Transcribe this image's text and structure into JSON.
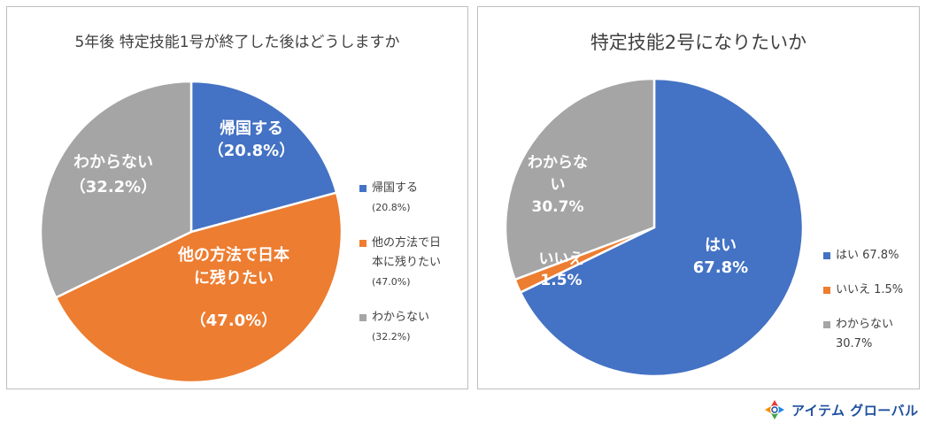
{
  "charts": [
    {
      "title": "5年後 特定技能1号が終了した後はどうしますか",
      "legend": [
        {
          "label": "帰国する",
          "value": "(20.8%)"
        },
        {
          "label": "他の方法で日本に残りたい",
          "label_line1": "他の方法で日",
          "label_line2": "本に残りたい",
          "value": "(47.0%)"
        },
        {
          "label": "わからない",
          "value": "(32.2%)"
        }
      ],
      "slice_labels": [
        {
          "line1": "帰国する",
          "line2": "（20.8%）"
        },
        {
          "line1": "他の方法で日本",
          "line2": "に残りたい",
          "line3": "（47.0%）"
        },
        {
          "line1": "わからない",
          "line2": "（32.2%）"
        }
      ]
    },
    {
      "title": "特定技能2号になりたいか",
      "legend": [
        {
          "label": "はい 67.8%"
        },
        {
          "label": "いいえ 1.5%"
        },
        {
          "label": "わからない",
          "value": "30.7%"
        }
      ],
      "slice_labels": [
        {
          "line1": "はい",
          "line2": "67.8%"
        },
        {
          "line1": "いいえ",
          "line2": "1.5%"
        },
        {
          "line1": "わからな",
          "line2": "い",
          "line3": "30.7%"
        }
      ]
    }
  ],
  "chart_data": [
    {
      "type": "pie",
      "title": "5年後 特定技能1号が終了した後はどうしますか",
      "categories": [
        "帰国する",
        "他の方法で日本に残りたい",
        "わからない"
      ],
      "values": [
        20.8,
        47.0,
        32.2
      ],
      "colors": [
        "#4472c4",
        "#ed7d31",
        "#a5a5a5"
      ],
      "start_angle": "12 o'clock, clockwise",
      "legend_position": "right"
    },
    {
      "type": "pie",
      "title": "特定技能2号になりたいか",
      "categories": [
        "はい",
        "いいえ",
        "わからない"
      ],
      "values": [
        67.8,
        1.5,
        30.7
      ],
      "colors": [
        "#4472c4",
        "#ed7d31",
        "#a5a5a5"
      ],
      "start_angle": "12 o'clock, clockwise",
      "legend_position": "right"
    }
  ],
  "logo": {
    "text": "アイテム グローバル",
    "icon": "company-logo-icon"
  }
}
